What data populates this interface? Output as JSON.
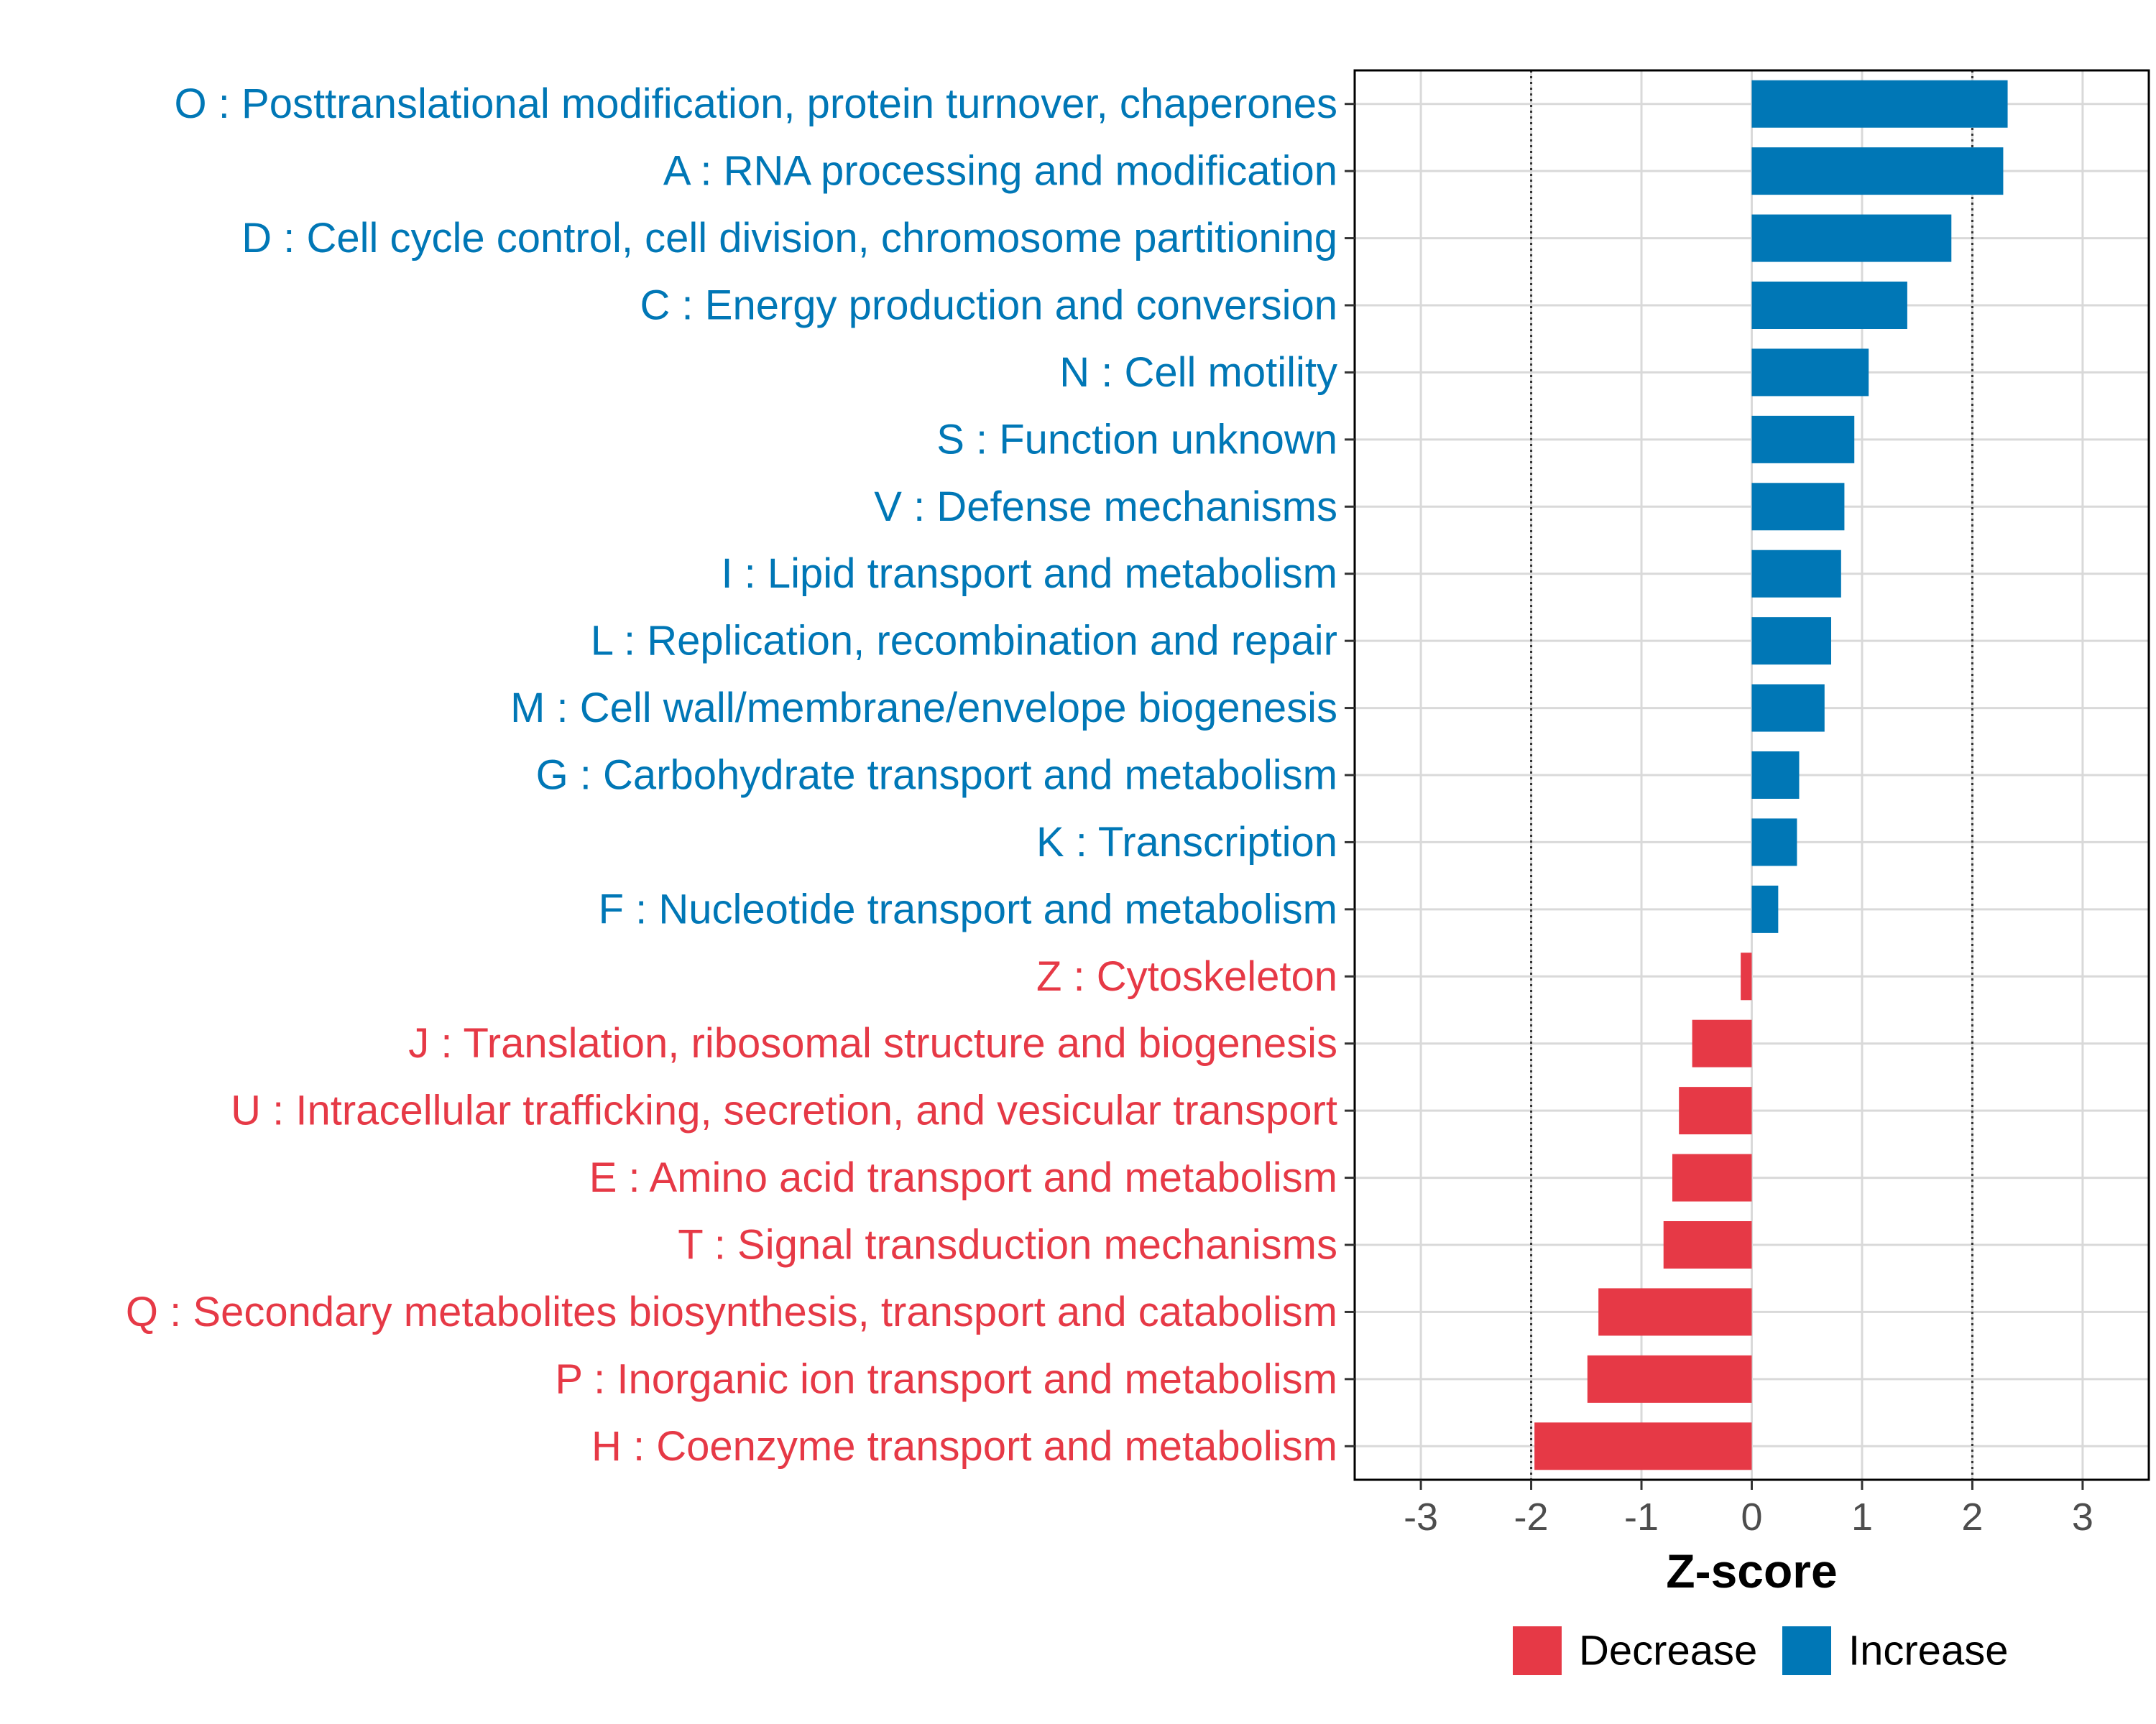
{
  "chart_data": {
    "type": "bar",
    "orientation": "horizontal",
    "title": "",
    "xlabel": "Z-score",
    "ylabel": "",
    "xlim": [
      -3.6,
      3.6
    ],
    "xticks": [
      -3,
      -2,
      -1,
      0,
      1,
      2,
      3
    ],
    "threshold_lines": [
      -2,
      2
    ],
    "grid": true,
    "legend_position": "bottom",
    "legend": [
      {
        "label": "Decrease",
        "color": "#E63946"
      },
      {
        "label": "Increase",
        "color": "#0077B6"
      }
    ],
    "categories": [
      {
        "label": "O : Posttranslational modification, protein turnover, chaperones",
        "value": 2.32,
        "direction": "Increase"
      },
      {
        "label": "A : RNA processing and modification",
        "value": 2.28,
        "direction": "Increase"
      },
      {
        "label": "D : Cell cycle control, cell division, chromosome partitioning",
        "value": 1.81,
        "direction": "Increase"
      },
      {
        "label": "C : Energy production and conversion",
        "value": 1.41,
        "direction": "Increase"
      },
      {
        "label": "N : Cell motility",
        "value": 1.06,
        "direction": "Increase"
      },
      {
        "label": "S : Function unknown",
        "value": 0.93,
        "direction": "Increase"
      },
      {
        "label": "V : Defense mechanisms",
        "value": 0.84,
        "direction": "Increase"
      },
      {
        "label": "I : Lipid transport and metabolism",
        "value": 0.81,
        "direction": "Increase"
      },
      {
        "label": "L : Replication, recombination and repair",
        "value": 0.72,
        "direction": "Increase"
      },
      {
        "label": "M : Cell wall/membrane/envelope biogenesis",
        "value": 0.66,
        "direction": "Increase"
      },
      {
        "label": "G : Carbohydrate transport and metabolism",
        "value": 0.43,
        "direction": "Increase"
      },
      {
        "label": "K : Transcription",
        "value": 0.41,
        "direction": "Increase"
      },
      {
        "label": "F : Nucleotide transport and metabolism",
        "value": 0.24,
        "direction": "Increase"
      },
      {
        "label": "Z : Cytoskeleton",
        "value": -0.1,
        "direction": "Decrease"
      },
      {
        "label": "J : Translation, ribosomal structure and biogenesis",
        "value": -0.54,
        "direction": "Decrease"
      },
      {
        "label": "U : Intracellular trafficking, secretion, and vesicular transport",
        "value": -0.66,
        "direction": "Decrease"
      },
      {
        "label": "E : Amino acid transport and metabolism",
        "value": -0.72,
        "direction": "Decrease"
      },
      {
        "label": "T : Signal transduction mechanisms",
        "value": -0.8,
        "direction": "Decrease"
      },
      {
        "label": "Q : Secondary metabolites biosynthesis, transport and catabolism",
        "value": -1.39,
        "direction": "Decrease"
      },
      {
        "label": "P : Inorganic ion transport and metabolism",
        "value": -1.49,
        "direction": "Decrease"
      },
      {
        "label": "H : Coenzyme transport and metabolism",
        "value": -1.97,
        "direction": "Decrease"
      }
    ]
  }
}
